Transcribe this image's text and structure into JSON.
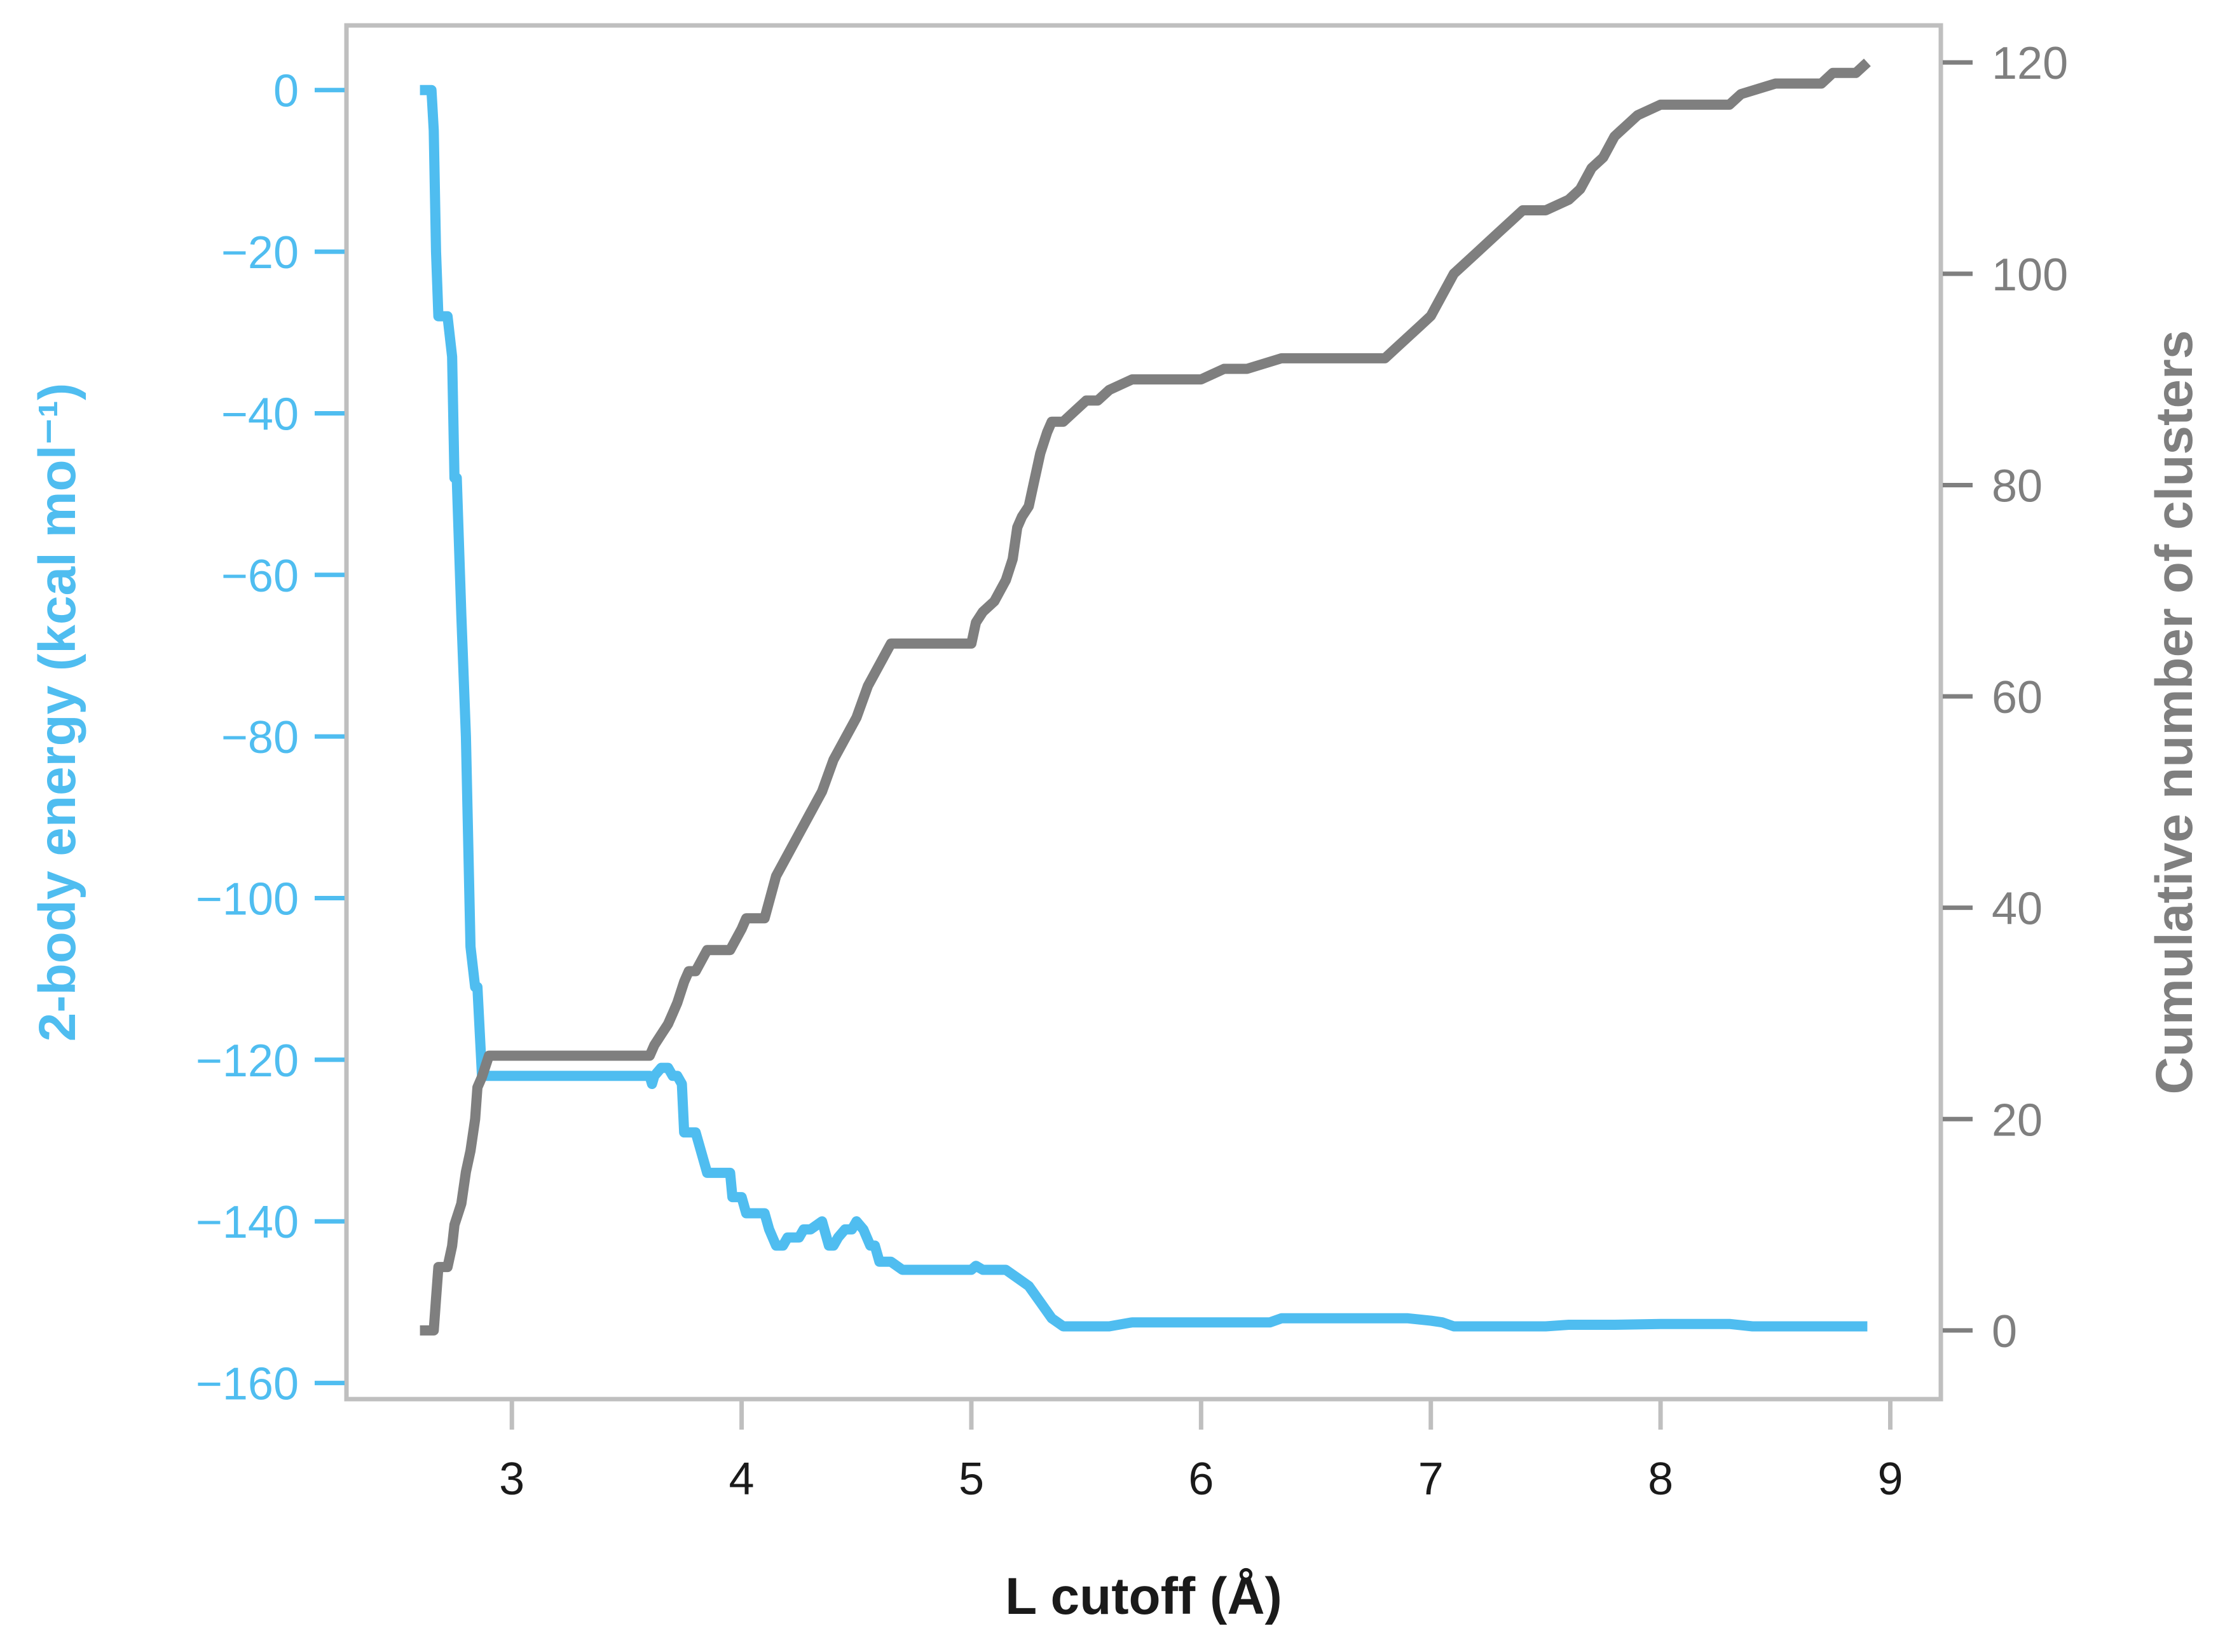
{
  "chart_data": {
    "type": "line",
    "xlabel": "L cutoff (Å)",
    "ylabel_left": "2-body energy (kcal mol⁻¹)",
    "ylabel_right": "Cumulative number of clusters",
    "xlim": [
      2.28,
      9.22
    ],
    "ylim_left": [
      -162,
      8
    ],
    "ylim_right": [
      -6.5,
      123.5
    ],
    "x_ticks": [
      3,
      4,
      5,
      6,
      7,
      8,
      9
    ],
    "x_tick_labels": [
      "3",
      "4",
      "5",
      "6",
      "7",
      "8",
      "9"
    ],
    "y_left_ticks": [
      0,
      -20,
      -40,
      -60,
      -80,
      -100,
      -120,
      -140,
      -160
    ],
    "y_left_tick_labels": [
      "0",
      "−20",
      "−40",
      "−60",
      "−80",
      "−100",
      "−120",
      "−140",
      "−160"
    ],
    "y_right_ticks": [
      120,
      100,
      80,
      60,
      40,
      20,
      0
    ],
    "y_right_tick_labels": [
      "120",
      "100",
      "80",
      "60",
      "40",
      "20",
      "0"
    ],
    "grid": false,
    "colors": {
      "energy": "#4fbdf0",
      "clusters": "#7f7f7f",
      "frame": "#bfbfbf",
      "xtext": "#1a1a1a"
    },
    "series": [
      {
        "axis": "left",
        "x": [
          2.6,
          2.65,
          2.66,
          2.67,
          2.68,
          2.7,
          2.72,
          2.74,
          2.75,
          2.76,
          2.78,
          2.8,
          2.82,
          2.84,
          2.85,
          2.87,
          2.88,
          2.9,
          3.0,
          3.2,
          3.4,
          3.6,
          3.61,
          3.62,
          3.65,
          3.68,
          3.7,
          3.72,
          3.74,
          3.75,
          3.8,
          3.85,
          3.86,
          3.95,
          3.96,
          4.0,
          4.02,
          4.1,
          4.12,
          4.15,
          4.18,
          4.2,
          4.25,
          4.27,
          4.3,
          4.35,
          4.38,
          4.4,
          4.42,
          4.45,
          4.48,
          4.5,
          4.53,
          4.56,
          4.58,
          4.6,
          4.65,
          4.7,
          4.8,
          5.0,
          5.02,
          5.05,
          5.1,
          5.15,
          5.2,
          5.25,
          5.3,
          5.35,
          5.4,
          5.5,
          5.6,
          5.7,
          6.0,
          6.3,
          6.35,
          6.9,
          7.0,
          7.05,
          7.1,
          7.2,
          7.5,
          7.6,
          7.8,
          8.0,
          8.3,
          8.4,
          8.9
        ],
        "y": [
          0,
          0,
          -5,
          -20,
          -28,
          -28,
          -28,
          -33,
          -48,
          -48,
          -65,
          -80,
          -106,
          -111,
          -111,
          -122,
          -122,
          -122,
          -122,
          -122,
          -122,
          -122,
          -123,
          -122,
          -121,
          -121,
          -122,
          -122,
          -123,
          -129,
          -129,
          -134,
          -134,
          -134,
          -137,
          -137,
          -139,
          -139,
          -141,
          -143,
          -143,
          -142,
          -142,
          -141,
          -141,
          -140,
          -143,
          -143,
          -142,
          -141,
          -141,
          -140,
          -141,
          -143,
          -143,
          -145,
          -145,
          -146,
          -146,
          -146,
          -145.5,
          -146,
          -146,
          -146,
          -147,
          -148,
          -150,
          -152,
          -153,
          -153,
          -153,
          -152.5,
          -152.5,
          -152.5,
          -152,
          -152,
          -152.3,
          -152.5,
          -153,
          -153,
          -153,
          -152.8,
          -152.8,
          -152.7,
          -152.7,
          -153,
          -153
        ]
      },
      {
        "axis": "right",
        "x": [
          2.6,
          2.66,
          2.67,
          2.68,
          2.7,
          2.72,
          2.74,
          2.75,
          2.78,
          2.8,
          2.82,
          2.84,
          2.85,
          2.87,
          2.9,
          3.0,
          3.2,
          3.4,
          3.5,
          3.6,
          3.62,
          3.65,
          3.68,
          3.7,
          3.72,
          3.75,
          3.77,
          3.8,
          3.85,
          3.9,
          3.95,
          4.0,
          4.02,
          4.1,
          4.15,
          4.2,
          4.25,
          4.3,
          4.35,
          4.4,
          4.45,
          4.5,
          4.55,
          4.6,
          4.65,
          4.7,
          4.8,
          4.9,
          5.0,
          5.02,
          5.05,
          5.1,
          5.15,
          5.18,
          5.2,
          5.22,
          5.25,
          5.27,
          5.3,
          5.33,
          5.35,
          5.4,
          5.45,
          5.5,
          5.55,
          5.6,
          5.7,
          5.75,
          6.0,
          6.1,
          6.2,
          6.35,
          6.5,
          6.8,
          6.85,
          6.9,
          6.95,
          7.0,
          7.05,
          7.1,
          7.15,
          7.2,
          7.25,
          7.3,
          7.35,
          7.4,
          7.5,
          7.6,
          7.65,
          7.7,
          7.75,
          7.8,
          7.85,
          7.9,
          8.0,
          8.1,
          8.2,
          8.3,
          8.35,
          8.5,
          8.6,
          8.7,
          8.75,
          8.85,
          8.9
        ],
        "y": [
          0,
          0,
          3,
          6,
          6,
          6,
          8,
          10,
          12,
          15,
          17,
          20,
          23,
          24,
          26,
          26,
          26,
          26,
          26,
          26,
          27,
          28,
          29,
          30,
          31,
          33,
          34,
          34,
          36,
          36,
          36,
          38,
          39,
          39,
          43,
          45,
          47,
          49,
          51,
          54,
          56,
          58,
          61,
          63,
          65,
          65,
          65,
          65,
          65,
          67,
          68,
          69,
          71,
          73,
          76,
          77,
          78,
          80,
          83,
          85,
          86,
          86,
          87,
          88,
          88,
          89,
          90,
          90,
          90,
          91,
          91,
          92,
          92,
          92,
          93,
          94,
          95,
          96,
          98,
          100,
          101,
          102,
          103,
          104,
          105,
          106,
          106,
          107,
          108,
          110,
          111,
          113,
          114,
          115,
          116,
          116,
          116,
          116,
          117,
          118,
          118,
          118,
          119,
          119,
          120
        ]
      }
    ]
  }
}
